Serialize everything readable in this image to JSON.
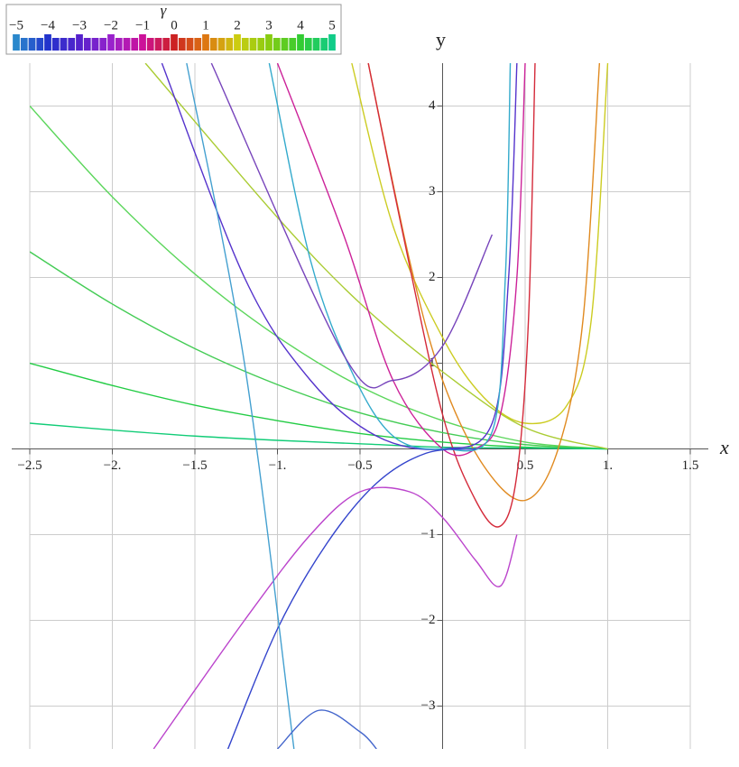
{
  "chart_data": {
    "type": "line",
    "xlabel": "x",
    "ylabel": "y",
    "xlim": [
      -2.5,
      1.5
    ],
    "ylim": [
      -3.5,
      4.5
    ],
    "xticks": [
      {
        "value": -2.5,
        "label": "−2.5"
      },
      {
        "value": -2,
        "label": "−2."
      },
      {
        "value": -1.5,
        "label": "−1.5"
      },
      {
        "value": -1,
        "label": "−1."
      },
      {
        "value": -0.5,
        "label": "−0.5"
      },
      0.5,
      {
        "value": 1,
        "label": "1."
      },
      1.5
    ],
    "yticks": [
      {
        "value": -3,
        "label": "−3"
      },
      {
        "value": -2,
        "label": "−2"
      },
      {
        "value": -1,
        "label": "−1"
      },
      1,
      2,
      3,
      4
    ],
    "grid": true,
    "colorbar": {
      "title": "γ",
      "ticks": [
        {
          "value": -5,
          "label": "−5"
        },
        {
          "value": -4,
          "label": "−4"
        },
        {
          "value": -3,
          "label": "−3"
        },
        {
          "value": -2,
          "label": "−2"
        },
        {
          "value": -1,
          "label": "−1"
        },
        0,
        1,
        2,
        3,
        4,
        5
      ],
      "colors": [
        "#2a88cc",
        "#2233cc",
        "#5522cc",
        "#9922cc",
        "#cc1199",
        "#cc2222",
        "#dd7711",
        "#cccc11",
        "#88cc11",
        "#33cc33",
        "#11cc88"
      ]
    },
    "series": [
      {
        "color": "#5cd65c",
        "x": [
          -2.5,
          -2,
          -1.5,
          -1,
          -0.5,
          0,
          0.5,
          1
        ],
        "values": [
          4,
          2.94,
          2.04,
          1.31,
          0.73,
          0.33,
          0.08,
          0
        ]
      },
      {
        "color": "#44cc55",
        "x": [
          -2.5,
          -2,
          -1.5,
          -1,
          -0.5,
          0,
          0.5,
          1
        ],
        "values": [
          2.3,
          1.69,
          1.17,
          0.75,
          0.42,
          0.19,
          0.05,
          0
        ]
      },
      {
        "color": "#22cc44",
        "x": [
          -2.5,
          -2,
          -1.5,
          -1,
          -0.5,
          0,
          0.5,
          1
        ],
        "values": [
          1,
          0.74,
          0.51,
          0.33,
          0.18,
          0.08,
          0.02,
          0
        ]
      },
      {
        "color": "#11cc77",
        "x": [
          -2.5,
          -2,
          -1.5,
          -1,
          -0.5,
          0,
          0.5,
          1
        ],
        "values": [
          0.3,
          0.22,
          0.15,
          0.1,
          0.06,
          0.02,
          0.01,
          0
        ]
      },
      {
        "color": "#aacc33",
        "x": [
          -1.8,
          -1,
          -0.5,
          0,
          0.5,
          1
        ],
        "values": [
          4.5,
          2.7,
          1.7,
          0.9,
          0.25,
          0
        ]
      },
      {
        "color": "#cccc22",
        "x": [
          -0.55,
          -0.3,
          0,
          0.25,
          0.5,
          0.75,
          0.9,
          1
        ],
        "values": [
          4.5,
          2.6,
          1.3,
          0.6,
          0.3,
          0.5,
          1.5,
          4.5
        ]
      },
      {
        "color": "#e08a20",
        "x": [
          -0.45,
          -0.2,
          0,
          0.25,
          0.5,
          0.7,
          0.85,
          0.95
        ],
        "values": [
          4.5,
          2.2,
          0.8,
          -0.2,
          -0.6,
          0,
          1.5,
          4.5
        ]
      },
      {
        "color": "#d42a3a",
        "x": [
          -0.45,
          -0.25,
          0,
          0.2,
          0.35,
          0.45,
          0.52,
          0.56
        ],
        "values": [
          4.5,
          2.6,
          0.4,
          -0.6,
          -0.9,
          -0.3,
          1.5,
          4.5
        ]
      },
      {
        "color": "#cc2299",
        "x": [
          -1,
          -0.6,
          -0.3,
          0,
          0.2,
          0.35,
          0.45,
          0.5
        ],
        "values": [
          4.5,
          2.5,
          0.8,
          0,
          0,
          0.4,
          2,
          4.5
        ]
      },
      {
        "color": "#5533cc",
        "x": [
          -1.7,
          -1.2,
          -0.8,
          -0.4,
          0,
          0.3,
          0.4,
          0.45
        ],
        "values": [
          4.5,
          2,
          0.8,
          0.15,
          0,
          0.3,
          2,
          4.5
        ]
      },
      {
        "color": "#33aacc",
        "x": [
          -1.05,
          -0.8,
          -0.55,
          -0.3,
          0,
          0.3,
          0.38,
          0.41
        ],
        "values": [
          4.5,
          2.2,
          0.9,
          0.15,
          0,
          0.2,
          2,
          4.5
        ]
      },
      {
        "color": "#3344cc",
        "x": [
          -1.3,
          -1,
          -0.7,
          -0.4,
          -0.1,
          0.2
        ],
        "values": [
          -3.5,
          -2.1,
          -1.1,
          -0.4,
          -0.05,
          0
        ]
      },
      {
        "color": "#bb44cc",
        "x": [
          -1.75,
          -1.2,
          -0.8,
          -0.5,
          -0.2,
          0,
          0.2,
          0.35,
          0.45
        ],
        "values": [
          -3.5,
          -2,
          -1,
          -0.5,
          -0.5,
          -0.8,
          -1.3,
          -1.6,
          -1
        ]
      },
      {
        "color": "#44a0d0",
        "x": [
          -1.55,
          -1.2,
          -0.9
        ],
        "values": [
          4.5,
          1,
          -3.5
        ]
      },
      {
        "color": "#7744bb",
        "x": [
          -1.4,
          -0.6,
          -0.3,
          0,
          0.3
        ],
        "values": [
          4.5,
          1.1,
          0.8,
          1.2,
          2.5
        ]
      },
      {
        "color": "#4466cc",
        "x": [
          -1,
          -0.75,
          -0.5,
          -0.4
        ],
        "values": [
          -3.5,
          -3.05,
          -3.3,
          -3.5
        ]
      }
    ]
  }
}
